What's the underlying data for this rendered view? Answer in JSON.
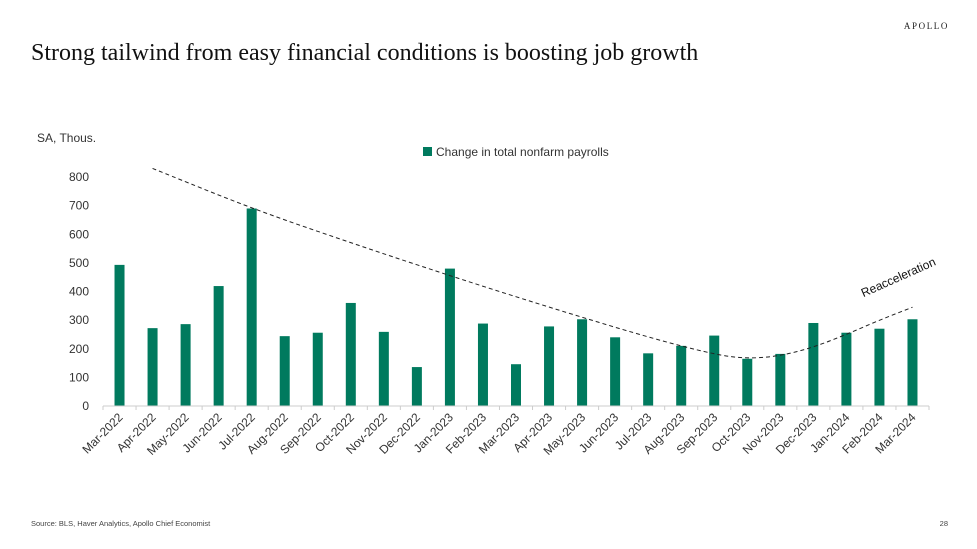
{
  "header": {
    "brand": "APOLLO",
    "title": "Strong tailwind from easy financial conditions is boosting job growth"
  },
  "footer": {
    "source": "Source: BLS, Haver Analytics, Apollo Chief Economist",
    "page_number": "28"
  },
  "colors": {
    "bar": "#007A5E",
    "trend": "#222222",
    "axis": "#cccccc"
  },
  "chart_data": {
    "type": "bar",
    "ylabel": "SA, Thous.",
    "ylim": [
      0,
      800
    ],
    "yticks": [
      0,
      100,
      200,
      300,
      400,
      500,
      600,
      700,
      800
    ],
    "grid": false,
    "legend_position": "top-center",
    "categories": [
      "Mar-2022",
      "Apr-2022",
      "May-2022",
      "Jun-2022",
      "Jul-2022",
      "Aug-2022",
      "Sep-2022",
      "Oct-2022",
      "Nov-2022",
      "Dec-2022",
      "Jan-2023",
      "Feb-2023",
      "Mar-2023",
      "Apr-2023",
      "May-2023",
      "Jun-2023",
      "Jul-2023",
      "Aug-2023",
      "Sep-2023",
      "Oct-2023",
      "Nov-2023",
      "Dec-2023",
      "Jan-2024",
      "Feb-2024",
      "Mar-2024"
    ],
    "series": [
      {
        "name": "Change in total nonfarm payrolls",
        "values": [
          493,
          272,
          286,
          419,
          690,
          244,
          256,
          360,
          259,
          136,
          480,
          288,
          146,
          278,
          303,
          240,
          184,
          210,
          246,
          165,
          182,
          290,
          256,
          270,
          303
        ]
      }
    ],
    "trendline": {
      "style": "dashed",
      "points": [
        {
          "x": "Apr-2022",
          "y": 830
        },
        {
          "x": "Jul-2022",
          "y": 690
        },
        {
          "x": "Oct-2022",
          "y": 570
        },
        {
          "x": "Jan-2023",
          "y": 455
        },
        {
          "x": "Apr-2023",
          "y": 345
        },
        {
          "x": "Jul-2023",
          "y": 240
        },
        {
          "x": "Sep-2023",
          "y": 180
        },
        {
          "x": "Oct-2023",
          "y": 165
        },
        {
          "x": "Nov-2023",
          "y": 175
        },
        {
          "x": "Dec-2023",
          "y": 205
        },
        {
          "x": "Jan-2024",
          "y": 250
        },
        {
          "x": "Feb-2024",
          "y": 300
        },
        {
          "x": "Mar-2024",
          "y": 345
        }
      ]
    },
    "annotations": [
      {
        "text": "Reacceleration",
        "x": "Feb-2024",
        "y": 380
      }
    ]
  }
}
